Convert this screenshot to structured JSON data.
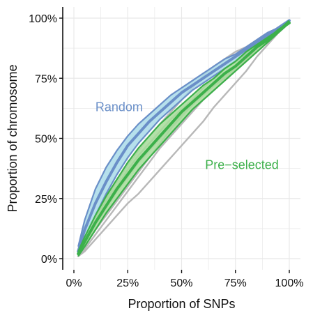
{
  "chart_data": {
    "type": "line",
    "xlabel": "Proportion of SNPs",
    "ylabel": "Proportion of chromosome",
    "xlim": [
      0,
      100
    ],
    "ylim": [
      0,
      100
    ],
    "x_ticks": [
      0,
      25,
      50,
      75,
      100
    ],
    "y_ticks": [
      0,
      25,
      50,
      75,
      100
    ],
    "x_tick_labels": [
      "0%",
      "25%",
      "50%",
      "75%",
      "100%"
    ],
    "y_tick_labels": [
      "0%",
      "25%",
      "50%",
      "75%",
      "100%"
    ],
    "grid": true,
    "x": [
      2,
      5,
      10,
      15,
      20,
      25,
      30,
      35,
      40,
      45,
      50,
      55,
      60,
      65,
      70,
      75,
      80,
      85,
      90,
      95,
      100
    ],
    "bands": [
      {
        "group": "Random",
        "color": "#6a8fc8",
        "fill": "#a9dbe9",
        "lower": [
          2,
          8,
          18,
          27,
          35,
          42,
          48,
          53,
          58,
          62,
          66,
          70,
          73,
          76,
          79,
          82,
          85,
          88,
          92,
          95,
          98
        ],
        "upper": [
          5,
          16,
          29,
          38,
          45,
          51,
          56,
          60,
          64,
          68,
          71,
          74,
          77,
          80,
          83,
          85,
          88,
          91,
          94,
          96,
          99
        ],
        "center": [
          3,
          12,
          23,
          32,
          40,
          47,
          52,
          57,
          61,
          65,
          69,
          72,
          75,
          78,
          81,
          84,
          87,
          90,
          93,
          96,
          99
        ]
      },
      {
        "group": "Pre-selected",
        "color": "#3cb04a",
        "fill": "#a6dc9a",
        "lower": [
          1,
          5,
          12,
          19,
          25,
          31,
          37,
          42,
          47,
          52,
          57,
          62,
          66,
          70,
          74,
          78,
          82,
          86,
          90,
          94,
          98
        ],
        "upper": [
          3,
          9,
          18,
          26,
          33,
          40,
          46,
          51,
          56,
          60,
          64,
          68,
          72,
          75,
          79,
          82,
          86,
          89,
          92,
          95,
          99
        ],
        "center": [
          2,
          7,
          15,
          22,
          29,
          35,
          41,
          46,
          51,
          56,
          61,
          65,
          69,
          73,
          77,
          80,
          84,
          88,
          91,
          95,
          98
        ]
      }
    ],
    "grey_lines": [
      {
        "values": [
          1,
          3,
          8,
          13,
          18,
          23,
          27,
          32,
          37,
          42,
          47,
          52,
          57,
          63,
          68,
          73,
          78,
          84,
          89,
          94,
          98
        ]
      },
      {
        "values": [
          2,
          6,
          14,
          21,
          28,
          34,
          40,
          45,
          50,
          55,
          60,
          64,
          68,
          72,
          76,
          79,
          83,
          87,
          91,
          95,
          98
        ]
      },
      {
        "values": [
          2,
          8,
          17,
          25,
          32,
          39,
          45,
          51,
          56,
          61,
          66,
          71,
          76,
          80,
          83,
          86,
          88,
          91,
          94,
          96,
          99
        ]
      },
      {
        "values": [
          1,
          5,
          12,
          18,
          24,
          30,
          36,
          42,
          48,
          54,
          59,
          64,
          69,
          72,
          75,
          78,
          82,
          86,
          90,
          94,
          98
        ]
      },
      {
        "values": [
          2,
          7,
          16,
          24,
          30,
          37,
          43,
          48,
          53,
          58,
          62,
          66,
          71,
          75,
          79,
          82,
          86,
          89,
          92,
          95,
          98
        ]
      },
      {
        "values": [
          1,
          4,
          10,
          16,
          22,
          28,
          34,
          40,
          46,
          51,
          56,
          61,
          66,
          70,
          74,
          78,
          83,
          87,
          91,
          95,
          98
        ]
      }
    ],
    "annotations": [
      {
        "text": "Random",
        "x": 21,
        "y": 63,
        "color": "#6a8fc8"
      },
      {
        "text": "Pre−selected",
        "x": 78,
        "y": 39,
        "color": "#3cb04a"
      }
    ],
    "colors": {
      "grid": "#e8e8e8",
      "axis": "#111111",
      "grey_line": "#b8b8b8"
    }
  }
}
